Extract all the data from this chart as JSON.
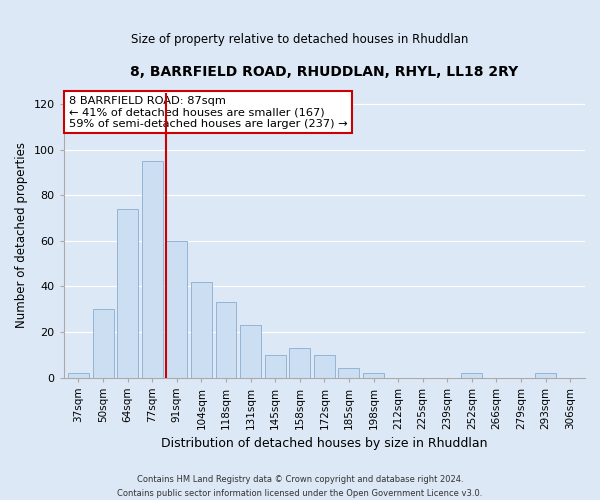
{
  "title": "8, BARRFIELD ROAD, RHUDDLAN, RHYL, LL18 2RY",
  "subtitle": "Size of property relative to detached houses in Rhuddlan",
  "xlabel": "Distribution of detached houses by size in Rhuddlan",
  "ylabel": "Number of detached properties",
  "bar_labels": [
    "37sqm",
    "50sqm",
    "64sqm",
    "77sqm",
    "91sqm",
    "104sqm",
    "118sqm",
    "131sqm",
    "145sqm",
    "158sqm",
    "172sqm",
    "185sqm",
    "198sqm",
    "212sqm",
    "225sqm",
    "239sqm",
    "252sqm",
    "266sqm",
    "279sqm",
    "293sqm",
    "306sqm"
  ],
  "bar_values": [
    2,
    30,
    74,
    95,
    60,
    42,
    33,
    23,
    10,
    13,
    10,
    4,
    2,
    0,
    0,
    0,
    2,
    0,
    0,
    2,
    0
  ],
  "bar_color": "#ccdff2",
  "bar_edge_color": "#92b4d4",
  "vline_x_index": 3.57,
  "vline_color": "#cc0000",
  "ylim": [
    0,
    125
  ],
  "yticks": [
    0,
    20,
    40,
    60,
    80,
    100,
    120
  ],
  "annotation_title": "8 BARRFIELD ROAD: 87sqm",
  "annotation_line1": "← 41% of detached houses are smaller (167)",
  "annotation_line2": "59% of semi-detached houses are larger (237) →",
  "annotation_box_facecolor": "#ffffff",
  "annotation_box_edgecolor": "#cc0000",
  "footer_line1": "Contains HM Land Registry data © Crown copyright and database right 2024.",
  "footer_line2": "Contains public sector information licensed under the Open Government Licence v3.0.",
  "background_color": "#dce8f5",
  "grid_color": "#ffffff",
  "spine_color": "#aaaaaa"
}
